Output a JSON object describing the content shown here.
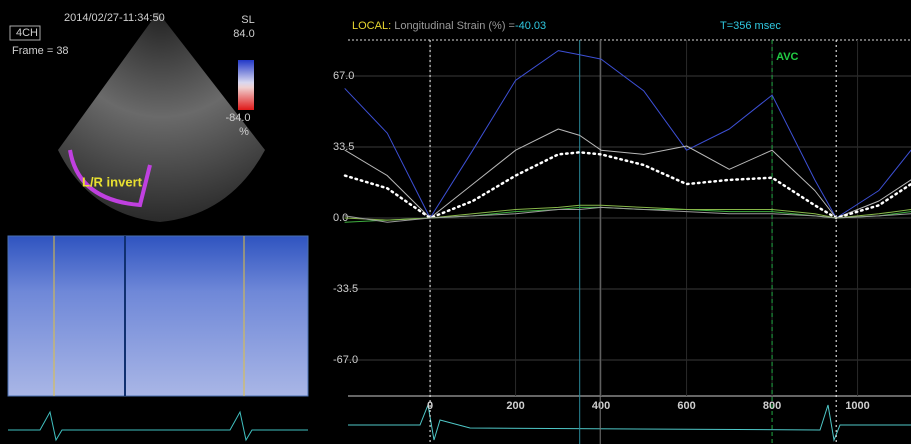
{
  "left_panel": {
    "timestamp": "2014/02/27-11:34:50",
    "view": "4CH",
    "frame": "Frame = 38",
    "scale_name": "SL",
    "scale_max": "84.0",
    "scale_min": "-84.0",
    "scale_unit": "%",
    "overlay": "L/R invert"
  },
  "header": {
    "label": "LOCAL:",
    "measure": "Longitudinal Strain (%) =",
    "value": "-40.03",
    "time": "T=356 msec"
  },
  "chart_data": {
    "type": "line",
    "x": [
      -199,
      -100,
      0,
      100,
      200,
      300,
      350,
      400,
      500,
      600,
      700,
      800,
      900,
      950,
      1050,
      1125
    ],
    "series": [
      {
        "color": "#3d50d6",
        "style": "solid",
        "values": [
          61,
          40,
          0,
          32,
          65,
          79,
          77,
          75,
          60,
          32,
          42,
          58,
          18,
          0,
          13,
          32
        ]
      },
      {
        "color": "#b8b8b8",
        "style": "solid",
        "values": [
          32,
          20,
          0,
          16,
          32,
          42,
          39,
          32,
          30,
          34,
          23,
          32,
          13,
          0,
          8,
          18
        ]
      },
      {
        "color": "#ffffff",
        "style": "dotted",
        "values": [
          20,
          14,
          0,
          8,
          20,
          30,
          31,
          30,
          25,
          16,
          18,
          19,
          6,
          0,
          6,
          16
        ]
      },
      {
        "color": "#3fae3f",
        "style": "solid",
        "values": [
          -2,
          -1,
          0,
          1,
          3,
          4,
          5,
          5,
          4,
          4,
          3,
          3,
          1,
          0,
          1,
          3
        ]
      },
      {
        "color": "#88b84a",
        "style": "solid",
        "values": [
          0,
          -1,
          0,
          2,
          4,
          5,
          6,
          6,
          5,
          4,
          4,
          4,
          2,
          0,
          2,
          4
        ]
      },
      {
        "color": "#9a9a9a",
        "style": "solid",
        "values": [
          1,
          -2,
          0,
          1,
          2,
          4,
          4,
          5,
          4,
          3,
          2,
          2,
          1,
          0,
          1,
          2
        ]
      }
    ],
    "xlim": [
      -199,
      1125
    ],
    "xticks": [
      0,
      200,
      400,
      600,
      800,
      1000
    ],
    "ylim": [
      -84,
      84
    ],
    "yticks": [
      {
        "value": 67,
        "label": "67.0"
      },
      {
        "value": 33.5,
        "label": "33.5"
      },
      {
        "value": 0,
        "label": "0.0"
      },
      {
        "value": -33.5,
        "label": "-33.5"
      },
      {
        "value": -67,
        "label": "-67.0"
      }
    ],
    "grid": true,
    "vlines": [
      {
        "x": 0,
        "color": "#ffffff",
        "style": "dotted"
      },
      {
        "x": 350,
        "color": "#2a8a9a",
        "style": "solid"
      },
      {
        "x": 398,
        "color": "#777777",
        "style": "solid"
      },
      {
        "x": 800,
        "color": "#22aa44",
        "style": "dashed"
      },
      {
        "x": 950,
        "color": "#ffffff",
        "style": "dotted"
      }
    ],
    "annotations": [
      {
        "text": "AVC",
        "x": 800,
        "color": "#22cc44"
      }
    ]
  }
}
